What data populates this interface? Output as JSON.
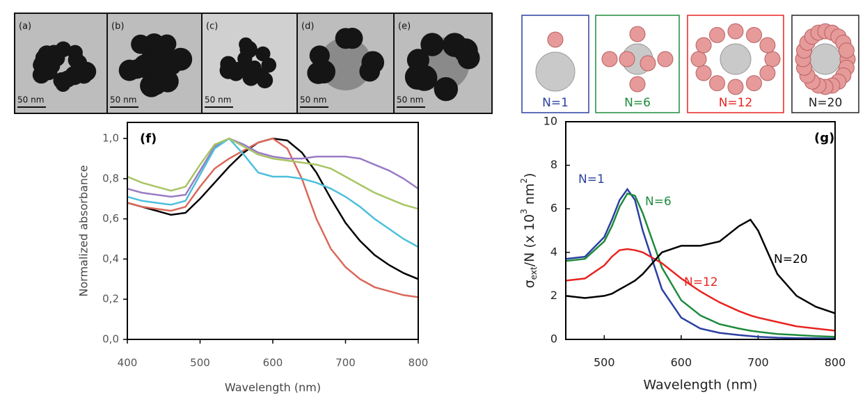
{
  "figure": {
    "tem": [
      {
        "label": "(a)",
        "scale": "50 nm"
      },
      {
        "label": "(b)",
        "scale": "50 nm"
      },
      {
        "label": "(c)",
        "scale": "50 nm"
      },
      {
        "label": "(d)",
        "scale": "50 nm"
      },
      {
        "label": "(e)",
        "scale": "50 nm"
      }
    ],
    "clusters": [
      "N=1",
      "N=6",
      "N=12",
      "N=20"
    ]
  },
  "chart_data": [
    {
      "type": "line",
      "panel_label": "(f)",
      "x_label": "Wavelength (nm)",
      "y_label": "Normalized absorbance",
      "xlim": [
        400,
        800
      ],
      "xticks": [
        400,
        500,
        600,
        700,
        800
      ],
      "ylim": [
        0,
        1.08
      ],
      "yticks": [
        {
          "value": 0,
          "label": "0,0"
        },
        {
          "value": 0.2,
          "label": "0,2"
        },
        {
          "value": 0.4,
          "label": "0,4"
        },
        {
          "value": 0.6,
          "label": "0,6"
        },
        {
          "value": 0.8,
          "label": "0,8"
        },
        {
          "value": 1.0,
          "label": "1,0"
        }
      ],
      "x": [
        400,
        420,
        440,
        460,
        480,
        500,
        520,
        540,
        560,
        580,
        600,
        620,
        640,
        660,
        680,
        700,
        720,
        740,
        760,
        780,
        800
      ],
      "series": [
        {
          "color": "#000000",
          "values": [
            0.68,
            0.66,
            0.64,
            0.62,
            0.63,
            0.7,
            0.78,
            0.86,
            0.93,
            0.98,
            1.0,
            0.99,
            0.93,
            0.83,
            0.7,
            0.58,
            0.49,
            0.42,
            0.37,
            0.33,
            0.3
          ]
        },
        {
          "color": "#d9685a",
          "values": [
            0.68,
            0.66,
            0.65,
            0.64,
            0.66,
            0.76,
            0.85,
            0.9,
            0.94,
            0.98,
            1.0,
            0.95,
            0.8,
            0.6,
            0.45,
            0.36,
            0.3,
            0.26,
            0.24,
            0.22,
            0.21
          ]
        },
        {
          "color": "#9a7cc4",
          "values": [
            0.75,
            0.73,
            0.72,
            0.71,
            0.72,
            0.84,
            0.96,
            1.0,
            0.97,
            0.93,
            0.91,
            0.9,
            0.9,
            0.91,
            0.91,
            0.91,
            0.9,
            0.87,
            0.84,
            0.8,
            0.75
          ]
        },
        {
          "color": "#4dbfdc",
          "values": [
            0.71,
            0.69,
            0.68,
            0.67,
            0.69,
            0.82,
            0.95,
            1.0,
            0.92,
            0.83,
            0.81,
            0.81,
            0.8,
            0.78,
            0.75,
            0.71,
            0.66,
            0.6,
            0.55,
            0.5,
            0.46
          ]
        },
        {
          "color": "#a8c464",
          "values": [
            0.81,
            0.78,
            0.76,
            0.74,
            0.76,
            0.87,
            0.97,
            1.0,
            0.96,
            0.92,
            0.9,
            0.89,
            0.88,
            0.87,
            0.85,
            0.81,
            0.77,
            0.73,
            0.7,
            0.67,
            0.65
          ]
        }
      ]
    },
    {
      "type": "line",
      "panel_label": "(g)",
      "x_label": "Wavelength (nm)",
      "y_label": [
        "σ",
        "ext",
        "/N (x 10",
        "3",
        " nm",
        "2",
        ")"
      ],
      "xlim": [
        450,
        800
      ],
      "xticks": [
        500,
        600,
        700,
        800
      ],
      "ylim": [
        0,
        10
      ],
      "yticks": [
        0,
        2,
        4,
        6,
        8,
        10
      ],
      "x": [
        450,
        475,
        500,
        510,
        520,
        530,
        540,
        550,
        575,
        600,
        625,
        650,
        675,
        690,
        700,
        725,
        750,
        775,
        800
      ],
      "series": [
        {
          "name": "N=1",
          "color": "#2b3fa0",
          "values": [
            3.7,
            3.8,
            4.7,
            5.5,
            6.4,
            6.9,
            6.4,
            5.0,
            2.3,
            1.0,
            0.5,
            0.3,
            0.2,
            0.15,
            0.12,
            0.08,
            0.06,
            0.05,
            0.04
          ]
        },
        {
          "name": "N=6",
          "color": "#1e8a3c",
          "values": [
            3.6,
            3.7,
            4.5,
            5.2,
            6.1,
            6.7,
            6.6,
            5.8,
            3.3,
            1.8,
            1.1,
            0.7,
            0.5,
            0.4,
            0.35,
            0.25,
            0.2,
            0.15,
            0.12
          ]
        },
        {
          "name": "N=12",
          "color": "#e8231f",
          "values": [
            2.7,
            2.8,
            3.4,
            3.8,
            4.1,
            4.15,
            4.1,
            4.0,
            3.5,
            2.8,
            2.2,
            1.7,
            1.3,
            1.1,
            1.0,
            0.8,
            0.6,
            0.5,
            0.4
          ]
        },
        {
          "name": "N=20",
          "color": "#000000",
          "values": [
            2.0,
            1.9,
            2.0,
            2.1,
            2.3,
            2.5,
            2.7,
            3.0,
            4.0,
            4.3,
            4.3,
            4.5,
            5.2,
            5.5,
            5.0,
            3.0,
            2.0,
            1.5,
            1.2
          ]
        }
      ]
    }
  ]
}
